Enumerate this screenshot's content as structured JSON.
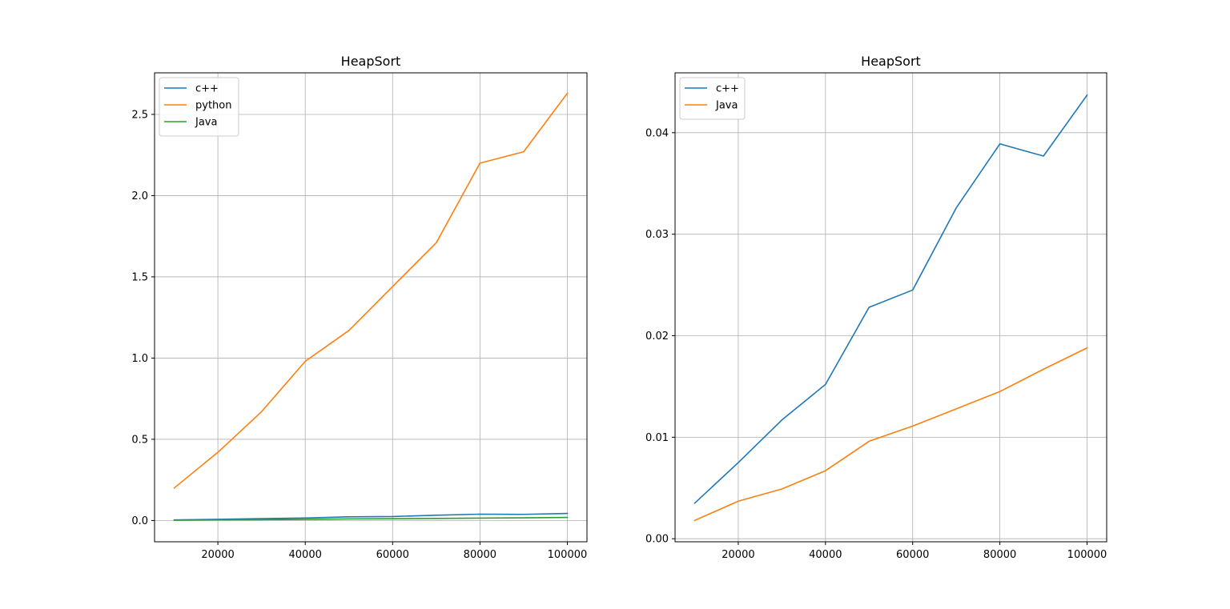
{
  "chart_data": [
    {
      "type": "line",
      "title": "HeapSort",
      "xlabel": "",
      "ylabel": "",
      "x": [
        10000,
        20000,
        30000,
        40000,
        50000,
        60000,
        70000,
        80000,
        90000,
        100000
      ],
      "xlim": [
        5500,
        104500
      ],
      "ylim": [
        -0.131,
        2.756
      ],
      "xticks": [
        20000,
        40000,
        60000,
        80000,
        100000
      ],
      "xtick_labels": [
        "20000",
        "40000",
        "60000",
        "80000",
        "100000"
      ],
      "yticks": [
        0.0,
        0.5,
        1.0,
        1.5,
        2.0,
        2.5
      ],
      "ytick_labels": [
        "0.0",
        "0.5",
        "1.0",
        "1.5",
        "2.0",
        "2.5"
      ],
      "grid": true,
      "legend_position": "upper left",
      "series": [
        {
          "name": "c++",
          "color": "#1f77b4",
          "values": [
            0.0035,
            0.0075,
            0.0117,
            0.0152,
            0.0228,
            0.0245,
            0.0326,
            0.0389,
            0.0377,
            0.0437
          ]
        },
        {
          "name": "python",
          "color": "#ff7f0e",
          "values": [
            0.2,
            0.42,
            0.67,
            0.98,
            1.17,
            1.44,
            1.71,
            2.2,
            2.27,
            2.63
          ]
        },
        {
          "name": "Java",
          "color": "#2ca02c",
          "values": [
            0.0018,
            0.0037,
            0.0049,
            0.0067,
            0.0096,
            0.0111,
            0.0128,
            0.0145,
            0.0167,
            0.0188
          ]
        }
      ]
    },
    {
      "type": "line",
      "title": "HeapSort",
      "xlabel": "",
      "ylabel": "",
      "x": [
        10000,
        20000,
        30000,
        40000,
        50000,
        60000,
        70000,
        80000,
        90000,
        100000
      ],
      "xlim": [
        5500,
        104500
      ],
      "ylim": [
        -0.0003,
        0.0459
      ],
      "xticks": [
        20000,
        40000,
        60000,
        80000,
        100000
      ],
      "xtick_labels": [
        "20000",
        "40000",
        "60000",
        "80000",
        "100000"
      ],
      "yticks": [
        0.0,
        0.01,
        0.02,
        0.03,
        0.04
      ],
      "ytick_labels": [
        "0.00",
        "0.01",
        "0.02",
        "0.03",
        "0.04"
      ],
      "grid": true,
      "legend_position": "upper left",
      "series": [
        {
          "name": "c++",
          "color": "#1f77b4",
          "values": [
            0.0035,
            0.0075,
            0.0117,
            0.0152,
            0.0228,
            0.0245,
            0.0326,
            0.0389,
            0.0377,
            0.0437
          ]
        },
        {
          "name": "Java",
          "color": "#ff7f0e",
          "values": [
            0.0018,
            0.0037,
            0.0049,
            0.0067,
            0.0096,
            0.0111,
            0.0128,
            0.0145,
            0.0167,
            0.0188
          ]
        }
      ]
    }
  ]
}
